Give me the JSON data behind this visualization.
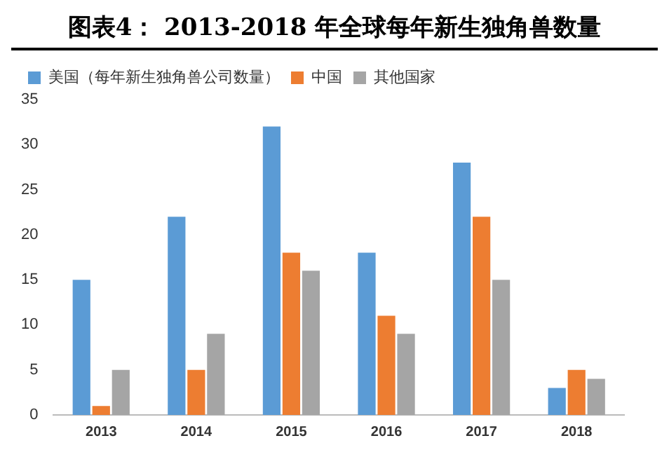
{
  "chart_data": {
    "type": "bar",
    "title": "图表4： 2013-2018 年全球每年新生独角兽数量",
    "categories": [
      "2013",
      "2014",
      "2015",
      "2016",
      "2017",
      "2018"
    ],
    "series": [
      {
        "name": "美国（每年新生独角兽公司数量）",
        "color": "#5b9bd5",
        "values": [
          15,
          22,
          32,
          18,
          28,
          3
        ]
      },
      {
        "name": "中国",
        "color": "#ed7d31",
        "values": [
          1,
          5,
          18,
          11,
          22,
          5
        ]
      },
      {
        "name": "其他国家",
        "color": "#a5a5a5",
        "values": [
          5,
          9,
          16,
          9,
          15,
          4
        ]
      }
    ],
    "ylim": [
      0,
      35
    ],
    "yticks": [
      0,
      5,
      10,
      15,
      20,
      25,
      30,
      35
    ],
    "grid": false,
    "legend": "top left"
  }
}
